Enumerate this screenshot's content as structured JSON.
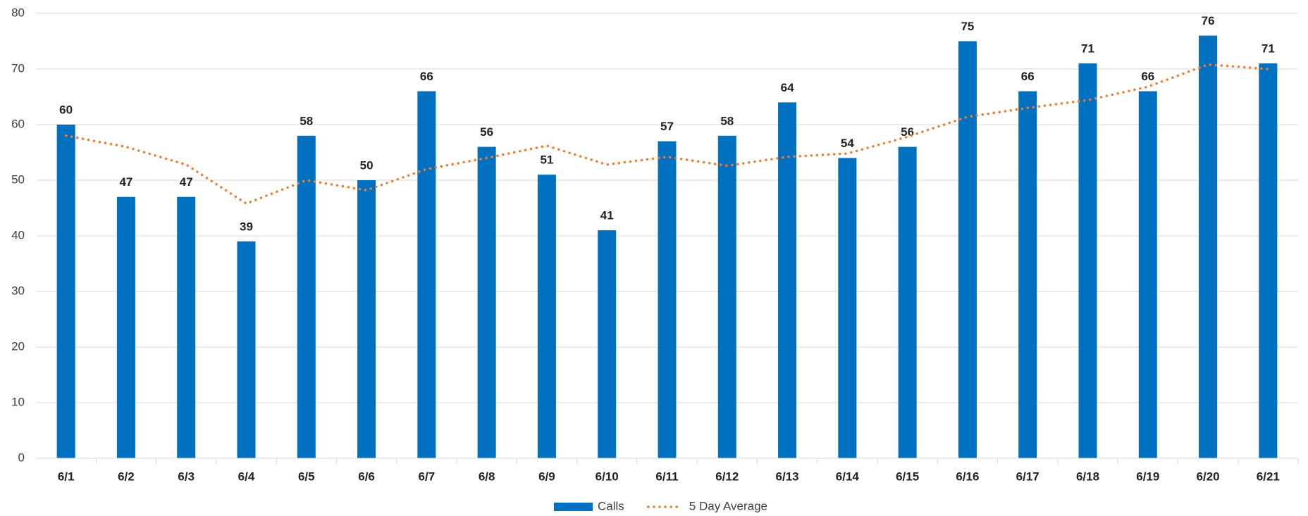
{
  "chart_data": {
    "type": "bar",
    "categories": [
      "6/1",
      "6/2",
      "6/3",
      "6/4",
      "6/5",
      "6/6",
      "6/7",
      "6/8",
      "6/9",
      "6/10",
      "6/11",
      "6/12",
      "6/13",
      "6/14",
      "6/15",
      "6/16",
      "6/17",
      "6/18",
      "6/19",
      "6/20",
      "6/21"
    ],
    "series": [
      {
        "name": "Calls",
        "type": "bar",
        "color": "#0070c0",
        "values": [
          60,
          47,
          47,
          39,
          58,
          50,
          66,
          56,
          51,
          41,
          57,
          58,
          64,
          54,
          56,
          75,
          66,
          71,
          66,
          76,
          71
        ]
      },
      {
        "name": "5 Day Average",
        "type": "line",
        "color": "#ed7d31",
        "values": [
          58,
          56,
          52.8,
          45.8,
          50,
          48.2,
          52,
          54,
          56.2,
          52.8,
          54.2,
          52.6,
          54.2,
          54.8,
          57.8,
          61.4,
          63,
          64.4,
          66.8,
          70.8,
          70
        ]
      }
    ],
    "ylim": [
      0,
      80
    ],
    "yticks": [
      0,
      10,
      20,
      30,
      40,
      50,
      60,
      70,
      80
    ],
    "grid": true,
    "legend": "bottom"
  }
}
